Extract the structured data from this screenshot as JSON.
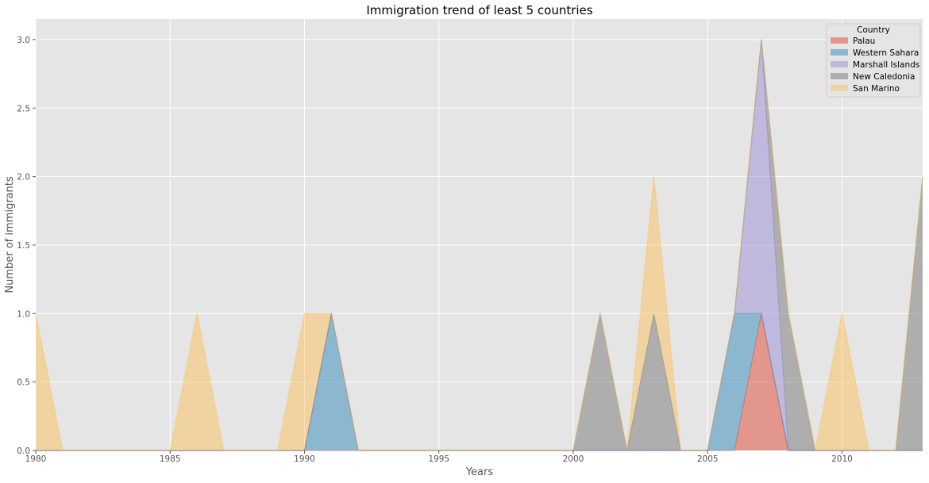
{
  "chart_data": {
    "type": "area",
    "stacked": true,
    "title": "Immigration trend of least 5 countries",
    "xlabel": "Years",
    "ylabel": "Number of immigrants",
    "xlim": [
      1980,
      2013
    ],
    "ylim": [
      0,
      3.15
    ],
    "x_ticks": [
      "1980",
      "1985",
      "1990",
      "1995",
      "2000",
      "2005",
      "2010"
    ],
    "x_tick_values": [
      1980,
      1985,
      1990,
      1995,
      2000,
      2005,
      2010
    ],
    "y_ticks": [
      "0.0",
      "0.5",
      "1.0",
      "1.5",
      "2.0",
      "2.5",
      "3.0"
    ],
    "y_tick_values": [
      0,
      0.5,
      1,
      1.5,
      2,
      2.5,
      3
    ],
    "grid": true,
    "legend": {
      "title": "Country",
      "placement": "top-right"
    },
    "x": [
      1980,
      1981,
      1982,
      1983,
      1984,
      1985,
      1986,
      1987,
      1988,
      1989,
      1990,
      1991,
      1992,
      1993,
      1994,
      1995,
      1996,
      1997,
      1998,
      1999,
      2000,
      2001,
      2002,
      2003,
      2004,
      2005,
      2006,
      2007,
      2008,
      2009,
      2010,
      2011,
      2012,
      2013
    ],
    "series": [
      {
        "name": "Palau",
        "color": "#e24a33",
        "values": [
          0,
          0,
          0,
          0,
          0,
          0,
          0,
          0,
          0,
          0,
          0,
          0,
          0,
          0,
          0,
          0,
          0,
          0,
          0,
          0,
          0,
          0,
          0,
          0,
          0,
          0,
          0,
          1,
          0,
          0,
          0,
          0,
          0,
          0
        ]
      },
      {
        "name": "Western Sahara",
        "color": "#348abd",
        "values": [
          0,
          0,
          0,
          0,
          0,
          0,
          0,
          0,
          0,
          0,
          0,
          1,
          0,
          0,
          0,
          0,
          0,
          0,
          0,
          0,
          0,
          0,
          0,
          0,
          0,
          0,
          1,
          0,
          0,
          0,
          0,
          0,
          0,
          0
        ]
      },
      {
        "name": "Marshall Islands",
        "color": "#988ed5",
        "values": [
          0,
          0,
          0,
          0,
          0,
          0,
          0,
          0,
          0,
          0,
          0,
          0,
          0,
          0,
          0,
          0,
          0,
          0,
          0,
          0,
          0,
          0,
          0,
          0,
          0,
          0,
          0,
          2,
          0,
          0,
          0,
          0,
          0,
          0
        ]
      },
      {
        "name": "New Caledonia",
        "color": "#777777",
        "values": [
          0,
          0,
          0,
          0,
          0,
          0,
          0,
          0,
          0,
          0,
          0,
          0,
          0,
          0,
          0,
          0,
          0,
          0,
          0,
          0,
          0,
          1,
          0,
          1,
          0,
          0,
          0,
          0,
          1,
          0,
          0,
          0,
          0,
          2
        ]
      },
      {
        "name": "San Marino",
        "color": "#fbc15e",
        "values": [
          1,
          0,
          0,
          0,
          0,
          0,
          1,
          0,
          0,
          0,
          1,
          0,
          0,
          0,
          0,
          0,
          0,
          0,
          0,
          0,
          0,
          0,
          0,
          1,
          0,
          0,
          0,
          0,
          0,
          0,
          1,
          0,
          0,
          0
        ]
      }
    ],
    "colors": {
      "background": "#e5e5e5",
      "grid": "#ffffff",
      "fill_opacity": 0.5
    }
  }
}
